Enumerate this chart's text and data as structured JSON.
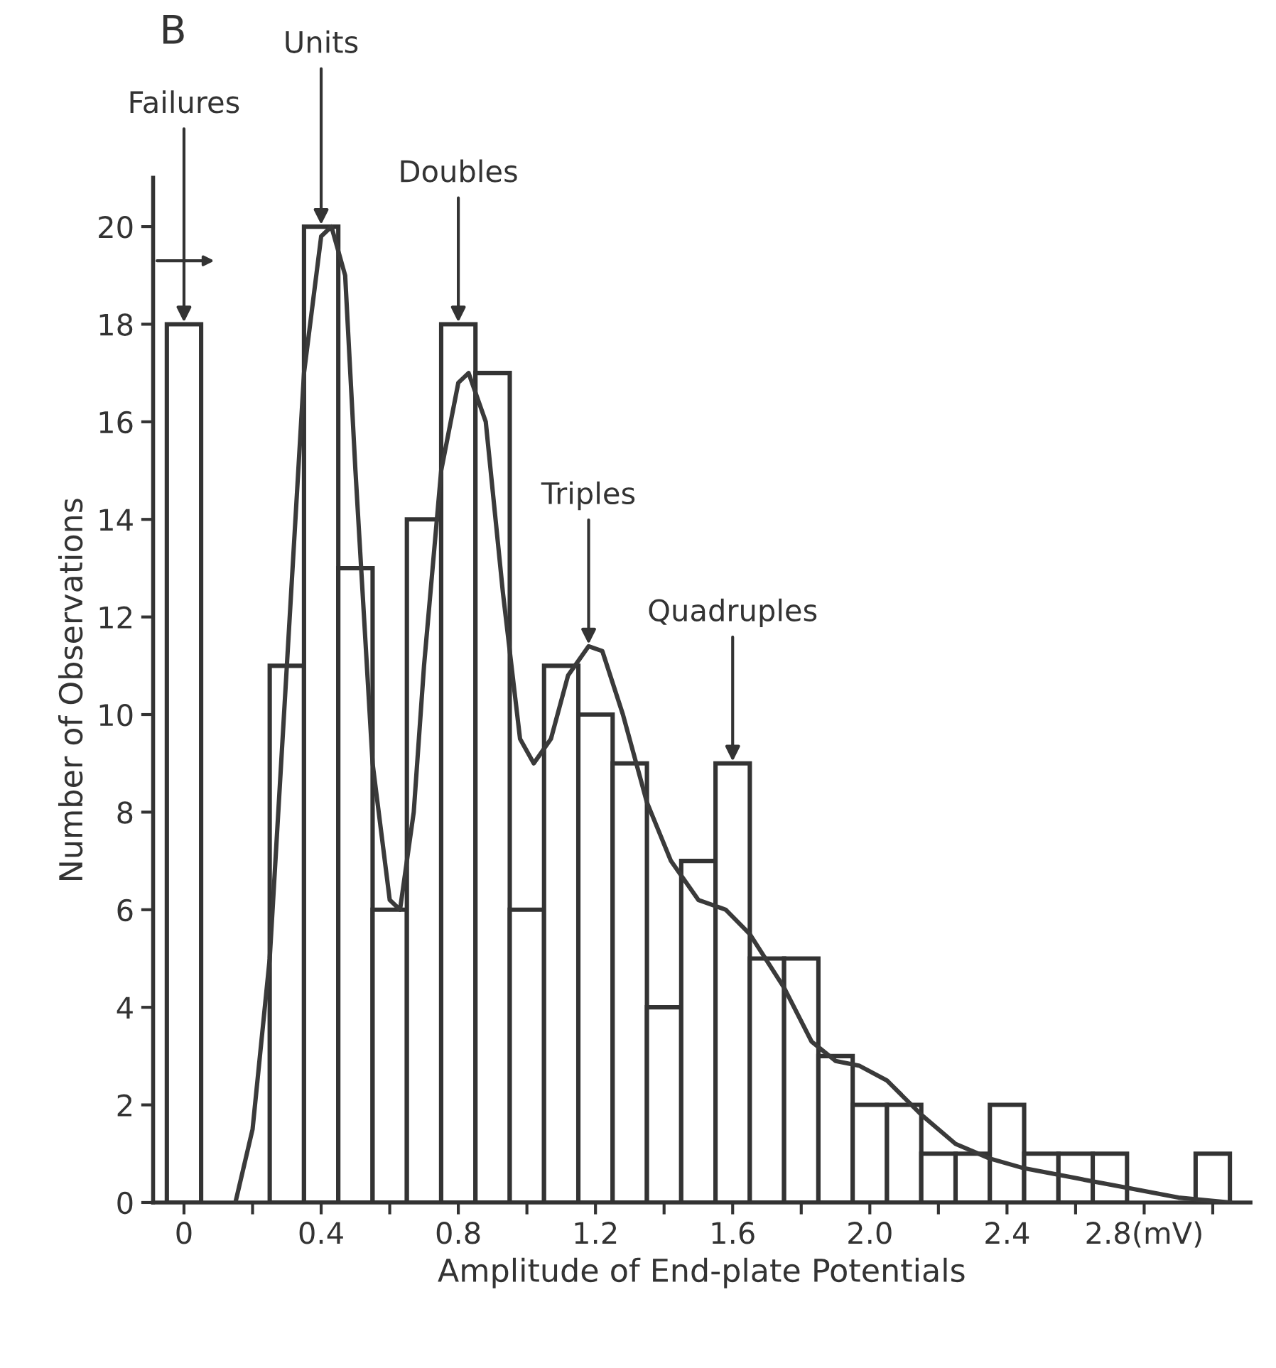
{
  "chart_data": {
    "type": "histogram",
    "xlabel": "Amplitude of End-plate Potentials",
    "ylabel": "Number of Observations",
    "bins": [
      -0.05,
      0.05,
      0.15,
      0.25,
      0.35,
      0.45,
      0.55,
      0.65,
      0.75,
      0.85,
      0.95,
      1.05,
      1.15,
      1.25,
      1.35,
      1.45,
      1.55,
      1.65,
      1.75,
      1.85,
      1.95,
      2.05,
      2.15,
      2.25,
      2.35,
      2.45,
      2.55,
      2.65,
      2.75,
      2.85,
      2.95,
      3.05
    ],
    "values": [
      18,
      0,
      0,
      11,
      20,
      13,
      6,
      14,
      18,
      17,
      6,
      11,
      10,
      9,
      4,
      7,
      9,
      5,
      5,
      3,
      2,
      2,
      1,
      1,
      2,
      1,
      1,
      1,
      0,
      0,
      1
    ],
    "color": "#ffffff",
    "series": [
      {
        "type": "line",
        "color": "#3a3a3a",
        "x": [
          0.15,
          0.2,
          0.25,
          0.3,
          0.35,
          0.4,
          0.43,
          0.47,
          0.5,
          0.55,
          0.6,
          0.63,
          0.67,
          0.7,
          0.75,
          0.8,
          0.83,
          0.88,
          0.93,
          0.98,
          1.02,
          1.07,
          1.12,
          1.18,
          1.22,
          1.28,
          1.35,
          1.42,
          1.5,
          1.58,
          1.65,
          1.75,
          1.83,
          1.9,
          1.97,
          2.05,
          2.15,
          2.25,
          2.35,
          2.45,
          2.6,
          2.75,
          2.9,
          3.05
        ],
        "values": [
          0,
          1.5,
          5,
          11,
          17,
          19.8,
          20,
          19,
          15,
          9,
          6.2,
          6,
          8,
          11,
          15,
          16.8,
          17,
          16,
          12.5,
          9.5,
          9,
          9.5,
          10.8,
          11.4,
          11.3,
          10,
          8.2,
          7,
          6.2,
          6,
          5.5,
          4.4,
          3.3,
          2.9,
          2.8,
          2.5,
          1.8,
          1.2,
          0.9,
          0.7,
          0.5,
          0.3,
          0.1,
          0
        ]
      }
    ],
    "xlim": [
      -0.09,
      3.11
    ],
    "ylim": [
      0,
      21
    ],
    "xticks": [
      {
        "value": 0,
        "label": "0"
      },
      {
        "value": 0.2,
        "label": null
      },
      {
        "value": 0.4,
        "label": "0.4"
      },
      {
        "value": 0.6,
        "label": null
      },
      {
        "value": 0.8,
        "label": "0.8"
      },
      {
        "value": 1.0,
        "label": null
      },
      {
        "value": 1.2,
        "label": "1.2"
      },
      {
        "value": 1.4,
        "label": null
      },
      {
        "value": 1.6,
        "label": "1.6"
      },
      {
        "value": 1.8,
        "label": null
      },
      {
        "value": 2.0,
        "label": "2.0"
      },
      {
        "value": 2.2,
        "label": null
      },
      {
        "value": 2.4,
        "label": "2.4"
      },
      {
        "value": 2.6,
        "label": null
      },
      {
        "value": 2.8,
        "label": "2.8(mV)"
      },
      {
        "value": 3.0,
        "label": null
      }
    ],
    "yticks": [
      0,
      2,
      4,
      6,
      8,
      10,
      12,
      14,
      16,
      18,
      20
    ],
    "grid": false,
    "legend": false,
    "annotations": [
      "B",
      {
        "text": "Failures",
        "x": 0,
        "y": 18
      },
      {
        "text": "Units",
        "x": 0.4,
        "y": 20
      },
      {
        "text": "Doubles",
        "x": 0.8,
        "y": 18
      },
      {
        "text": "Triples",
        "x": 1.18,
        "y": 11.4
      },
      {
        "text": "Quadruples",
        "x": 1.6,
        "y": 9
      }
    ]
  }
}
